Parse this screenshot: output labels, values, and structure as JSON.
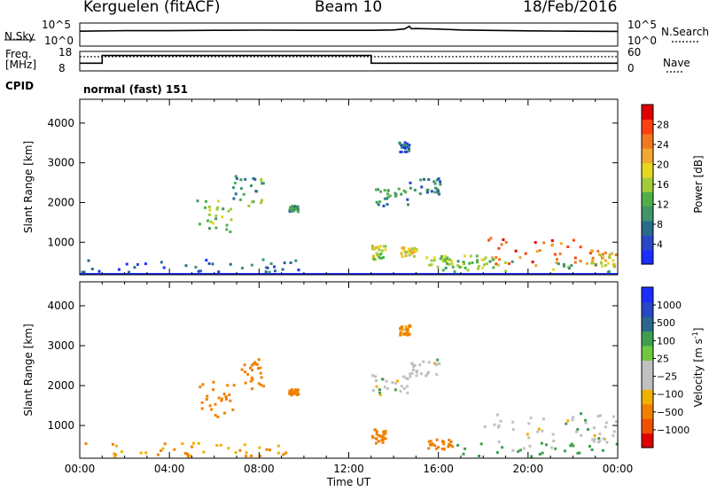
{
  "header": {
    "radar": "Kerguelen (fitACF)",
    "beam": "Beam 10",
    "date": "18/Feb/2016"
  },
  "top_panels": {
    "nsky_label": "N.Sky",
    "nsky_ticks": [
      "10^5",
      "10^0"
    ],
    "nsearch_label": "N.Search",
    "nsearch_ticks": [
      "10^5",
      "10^0"
    ],
    "freq_label": "Freq.",
    "freq_unit": "[MHz]",
    "freq_ticks": [
      "18",
      "8"
    ],
    "nave_label": "Nave",
    "nave_ticks": [
      "60",
      "0"
    ],
    "cpid_label": "CPID",
    "cpid_value": "normal (fast) 151",
    "nsky_trace": {
      "x_hours": [
        0,
        2,
        4,
        6,
        8,
        10,
        12,
        13,
        14,
        14.5,
        14.7,
        14.8,
        15,
        16,
        17,
        18,
        20,
        22,
        24
      ],
      "log_level": [
        3.2,
        3.35,
        3.35,
        3.45,
        3.5,
        3.45,
        3.45,
        3.45,
        3.55,
        3.85,
        4.6,
        3.9,
        3.95,
        3.8,
        3.55,
        3.45,
        3.3,
        3.2,
        3.15
      ]
    },
    "freq_steps": {
      "x_hours": [
        0,
        1,
        1,
        13,
        13,
        24
      ],
      "mhz": [
        10.2,
        10.2,
        15.3,
        15.3,
        10.2,
        10.2
      ]
    },
    "nave_dotted_level": 39
  },
  "chart_data": [
    {
      "type": "heatmap",
      "title": "",
      "xlabel": "Time UT",
      "ylabel": "Slant Range [km]",
      "xlim": [
        0,
        24
      ],
      "ylim": [
        180,
        4600
      ],
      "x_tick_labels": [
        "00:00",
        "04:00",
        "08:00",
        "12:00",
        "16:00",
        "20:00",
        "00:00"
      ],
      "y_ticks": [
        1000,
        2000,
        3000,
        4000
      ],
      "colorbar": {
        "label": "Power [dB]",
        "ticks": [
          "28",
          "24",
          "20",
          "16",
          "12",
          "8",
          "4"
        ],
        "colors_bottom_to_top": [
          "#1a2fff",
          "#2848c8",
          "#2a6b8c",
          "#3f9468",
          "#4fb04a",
          "#a0cc3a",
          "#e6d820",
          "#f0a830",
          "#f07820",
          "#ff4010",
          "#e00000"
        ]
      },
      "echo_regions": [
        {
          "t": [
            5.2,
            6.8
          ],
          "r": [
            1200,
            2100
          ],
          "db": 14
        },
        {
          "t": [
            6.8,
            8.2
          ],
          "r": [
            1900,
            2650
          ],
          "db": 12
        },
        {
          "t": [
            9.3,
            9.7
          ],
          "r": [
            1750,
            1900
          ],
          "db": 10
        },
        {
          "t": [
            13.0,
            14.6
          ],
          "r": [
            1900,
            2350
          ],
          "db": 10
        },
        {
          "t": [
            14.5,
            16.1
          ],
          "r": [
            2200,
            2650
          ],
          "db": 9
        },
        {
          "t": [
            13.0,
            13.6
          ],
          "r": [
            540,
            900
          ],
          "db": 18
        },
        {
          "t": [
            14.2,
            15.0
          ],
          "r": [
            620,
            880
          ],
          "db": 20
        },
        {
          "t": [
            15.4,
            16.6
          ],
          "r": [
            350,
            640
          ],
          "db": 17
        },
        {
          "t": [
            18.1,
            22.8
          ],
          "r": [
            400,
            1100
          ],
          "db": 27
        },
        {
          "t": [
            22.8,
            23.9
          ],
          "r": [
            350,
            780
          ],
          "db": 22
        },
        {
          "t": [
            16.8,
            18.5
          ],
          "r": [
            330,
            650
          ],
          "db": 16
        },
        {
          "t": [
            0.0,
            9.9
          ],
          "r": [
            220,
            560
          ],
          "db": 7
        },
        {
          "t": [
            16.0,
            23.9
          ],
          "r": [
            220,
            500
          ],
          "db": 14
        },
        {
          "t": [
            14.2,
            14.7
          ],
          "r": [
            3250,
            3500
          ],
          "db": 6
        }
      ]
    },
    {
      "type": "heatmap",
      "title": "",
      "xlabel": "Time UT",
      "ylabel": "Slant Range [km]",
      "xlim": [
        0,
        24
      ],
      "ylim": [
        180,
        4600
      ],
      "x_tick_labels": [
        "00:00",
        "04:00",
        "08:00",
        "12:00",
        "16:00",
        "20:00",
        "00:00"
      ],
      "y_ticks": [
        1000,
        2000,
        3000,
        4000
      ],
      "colorbar": {
        "label": "Velocity [m s",
        "label_sup": "-1",
        "label_close": "]",
        "ticks": [
          "1000",
          "500",
          "100",
          "25",
          "−25",
          "−100",
          "−500",
          "−1000"
        ],
        "colors_bottom_to_top": [
          "#e00000",
          "#f05000",
          "#f08000",
          "#f0b000",
          "#c0c0c0",
          "#c0c0c0",
          "#70c840",
          "#3f9f50",
          "#2a6890",
          "#2848c8",
          "#1a2fff"
        ]
      },
      "echo_regions": [
        {
          "t": [
            5.2,
            6.8
          ],
          "r": [
            1200,
            2100
          ],
          "v": -180
        },
        {
          "t": [
            6.8,
            8.2
          ],
          "r": [
            1900,
            2650
          ],
          "v": -180
        },
        {
          "t": [
            9.3,
            9.7
          ],
          "r": [
            1750,
            1900
          ],
          "v": -150
        },
        {
          "t": [
            13.0,
            14.6
          ],
          "r": [
            1750,
            2250
          ],
          "v": 0
        },
        {
          "t": [
            14.5,
            16.1
          ],
          "r": [
            2200,
            2650
          ],
          "v": 0
        },
        {
          "t": [
            13.0,
            13.6
          ],
          "r": [
            540,
            900
          ],
          "v": -150
        },
        {
          "t": [
            15.4,
            16.6
          ],
          "r": [
            350,
            640
          ],
          "v": -160
        },
        {
          "t": [
            18.0,
            24.0
          ],
          "r": [
            550,
            1300
          ],
          "v": 0
        },
        {
          "t": [
            16.5,
            24.0
          ],
          "r": [
            200,
            550
          ],
          "v": 40
        },
        {
          "t": [
            0.0,
            9.9
          ],
          "r": [
            200,
            560
          ],
          "v": -90
        },
        {
          "t": [
            14.2,
            14.7
          ],
          "r": [
            3250,
            3500
          ],
          "v": -120
        }
      ]
    }
  ]
}
